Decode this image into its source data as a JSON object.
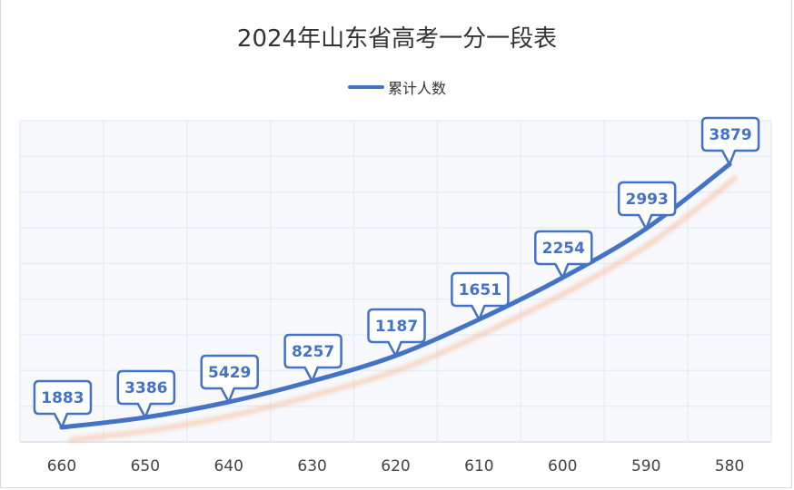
{
  "chart_data": {
    "type": "line",
    "title": "2024年山东省高考一分一段表",
    "xlabel": "",
    "ylabel": "",
    "categories": [
      "660",
      "650",
      "640",
      "630",
      "620",
      "610",
      "600",
      "590",
      "580"
    ],
    "series": [
      {
        "name": "累计人数",
        "color": "#4472c4",
        "values": [
          1883,
          3386,
          5429,
          8257,
          1187,
          1651,
          2254,
          2993,
          3879
        ],
        "data_labels": [
          "1883",
          "3386",
          "5429",
          "8257",
          "1187",
          "1651",
          "2254",
          "2993",
          "3879"
        ]
      }
    ],
    "legend_position": "top",
    "grid": true,
    "y_axis_labels_visible": false,
    "plot_background": "#f7f9fd",
    "grid_color": "#e6edf7",
    "shadow_color": "#f4b183"
  },
  "header": {
    "title": "2024年山东省高考一分一段表",
    "legend_label": "累计人数"
  }
}
